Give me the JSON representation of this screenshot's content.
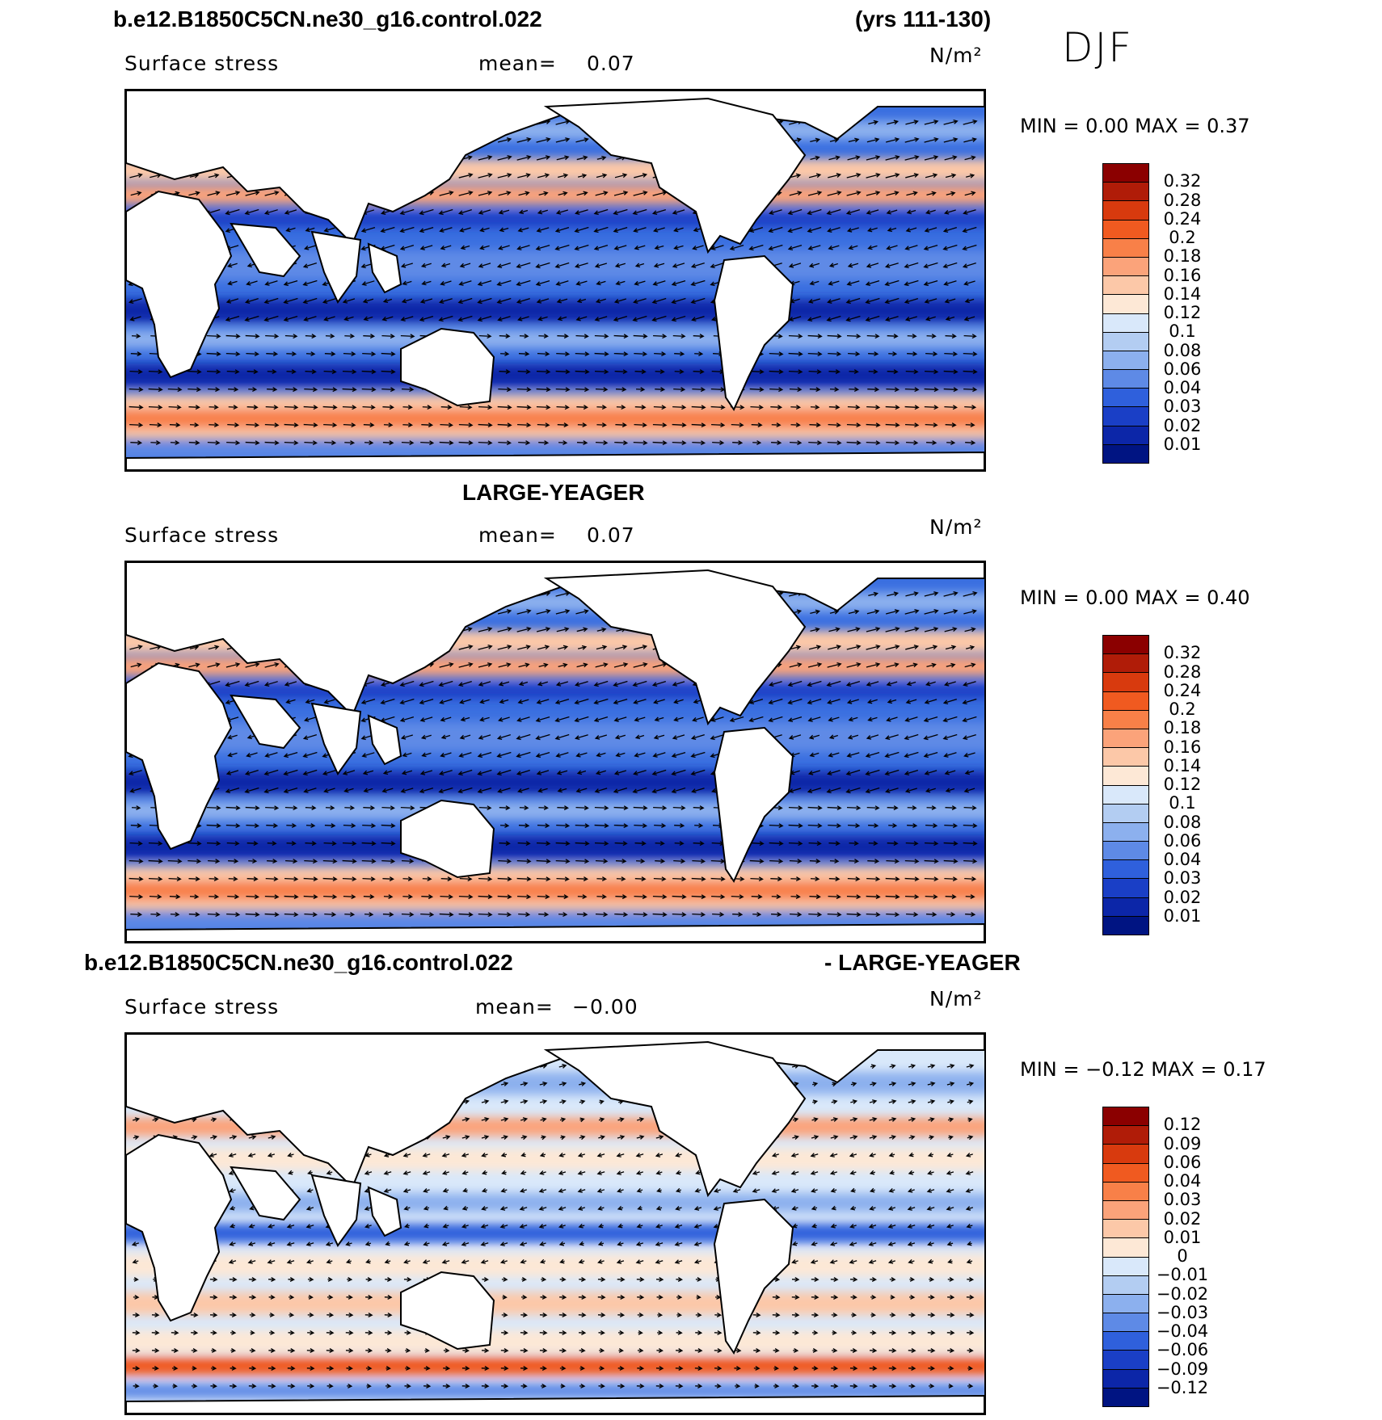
{
  "header": {
    "case_title": "b.e12.B1850C5CN.ne30_g16.control.022",
    "years": "(yrs 111-130)",
    "season": "DJF"
  },
  "panels": [
    {
      "title": "",
      "variable": "Surface stress",
      "mean_label": "mean=",
      "mean_value": "0.07",
      "units": "N/m²",
      "minmax": "MIN =    0.00  MAX =    0.37",
      "colorbar": {
        "labels": [
          "0.32",
          "0.28",
          "0.24",
          "0.2",
          "0.18",
          "0.16",
          "0.14",
          "0.12",
          "0.1",
          "0.08",
          "0.06",
          "0.04",
          "0.03",
          "0.02",
          "0.01"
        ],
        "colors": [
          "#8b0000",
          "#b01c08",
          "#d83a0e",
          "#f05a20",
          "#f88048",
          "#fba37a",
          "#fcc8a8",
          "#fde8d6",
          "#d9e8fa",
          "#b3cdf2",
          "#8cb0ee",
          "#5e8ae6",
          "#2f60dc",
          "#1a3fc6",
          "#0c26a8",
          "#001482"
        ]
      }
    },
    {
      "title": "LARGE-YEAGER",
      "variable": "Surface stress",
      "mean_label": "mean=",
      "mean_value": "0.07",
      "units": "N/m²",
      "minmax": "MIN =    0.00  MAX =    0.40",
      "colorbar": {
        "labels": [
          "0.32",
          "0.28",
          "0.24",
          "0.2",
          "0.18",
          "0.16",
          "0.14",
          "0.12",
          "0.1",
          "0.08",
          "0.06",
          "0.04",
          "0.03",
          "0.02",
          "0.01"
        ],
        "colors": [
          "#8b0000",
          "#b01c08",
          "#d83a0e",
          "#f05a20",
          "#f88048",
          "#fba37a",
          "#fcc8a8",
          "#fde8d6",
          "#d9e8fa",
          "#b3cdf2",
          "#8cb0ee",
          "#5e8ae6",
          "#2f60dc",
          "#1a3fc6",
          "#0c26a8",
          "#001482"
        ]
      }
    },
    {
      "title_left": "b.e12.B1850C5CN.ne30_g16.control.022",
      "title_right": "- LARGE-YEAGER",
      "variable": "Surface stress",
      "mean_label": "mean=",
      "mean_value": "−0.00",
      "units": "N/m²",
      "minmax": "MIN =  −0.12  MAX =    0.17",
      "colorbar": {
        "labels": [
          "0.12",
          "0.09",
          "0.06",
          "0.04",
          "0.03",
          "0.02",
          "0.01",
          "0",
          "−0.01",
          "−0.02",
          "−0.03",
          "−0.04",
          "−0.06",
          "−0.09",
          "−0.12"
        ],
        "colors": [
          "#8b0000",
          "#b01c08",
          "#d83a0e",
          "#f05a20",
          "#f88048",
          "#fba37a",
          "#fcc8a8",
          "#fde8d6",
          "#d9e8fa",
          "#b3cdf2",
          "#8cb0ee",
          "#5e8ae6",
          "#2f60dc",
          "#1a3fc6",
          "#0c26a8",
          "#001482"
        ]
      }
    }
  ],
  "map_style": {
    "ocean_base_abs": "#3a6fe0",
    "ocean_base_diff": "#d9e8fa",
    "land": "#ffffff",
    "coast": "#000000"
  }
}
